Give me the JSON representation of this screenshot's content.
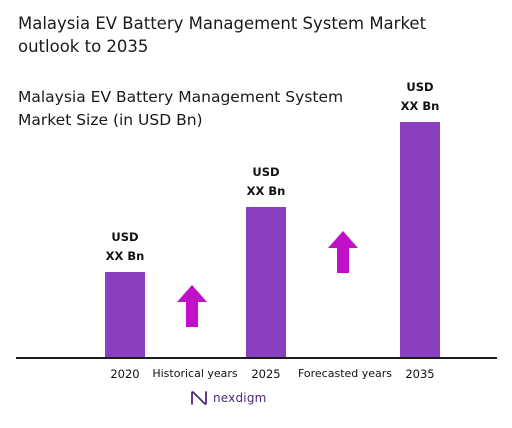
{
  "header": {
    "title": "Malaysia EV Battery Management System Market outlook to 2035",
    "subtitle": "Malaysia EV Battery Management System Market Size (in USD Bn)"
  },
  "colors": {
    "bar": "#8a3fc1",
    "arrow": "#c010c8",
    "axis": "#1c1c1c"
  },
  "chart_data": {
    "type": "bar",
    "title": "Malaysia EV Battery Management System Market Size (in USD Bn)",
    "categories": [
      "2020",
      "2025",
      "2035"
    ],
    "values": [
      85,
      150,
      235
    ],
    "value_labels": [
      [
        "USD",
        "XX Bn"
      ],
      [
        "USD",
        "XX Bn"
      ],
      [
        "USD",
        "XX Bn"
      ]
    ],
    "ylim": [
      0,
      240
    ],
    "grid": false,
    "annotations": [
      {
        "text": "Historical years",
        "between": [
          "2020",
          "2025"
        ],
        "arrow": "up"
      },
      {
        "text": "Forecasted years",
        "between": [
          "2025",
          "2035"
        ],
        "arrow": "up"
      }
    ]
  },
  "footer": {
    "brand": "nexdigm",
    "brand_icon": "nexdigm-logo-icon"
  }
}
